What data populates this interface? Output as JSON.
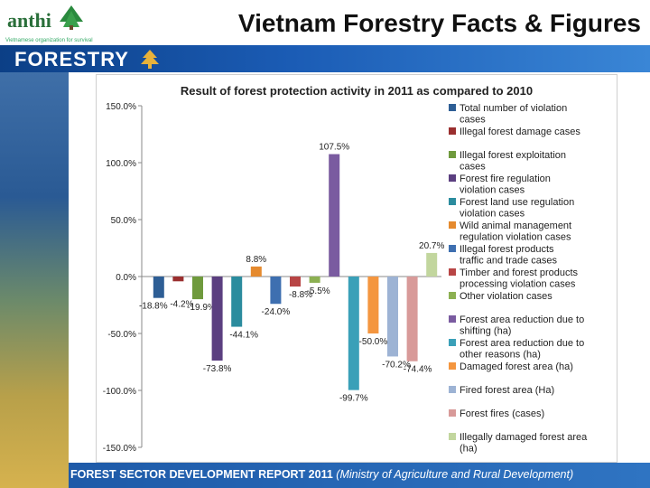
{
  "slide": {
    "title": "Vietnam Forestry Facts & Figures",
    "banner": "FORESTRY",
    "logo_text": "anthi",
    "logo_tagline": "Vietnamese organization for survival",
    "footer_bold": "FOREST SECTOR DEVELOPMENT REPORT 2011",
    "footer_italic": "(Ministry of Agriculture and Rural Development)"
  },
  "chart_data": {
    "type": "bar",
    "title": "Result of forest protection activity in 2011 as compared to 2010",
    "ylim": [
      -150,
      150
    ],
    "yticks": [
      "150.0%",
      "100.0%",
      "50.0%",
      "0.0%",
      "-50.0%",
      "-100.0%",
      "-150.0%"
    ],
    "legend_position": "right",
    "grid": false,
    "series": [
      {
        "name": "Total number of violation cases",
        "value": -18.8,
        "label": "-18.8%",
        "color": "#2e5e95"
      },
      {
        "name": "Illegal forest damage cases",
        "value": -4.2,
        "label": "-4.2%",
        "color": "#9a2f2f"
      },
      {
        "name": "Illegal forest exploitation cases",
        "value": -19.9,
        "label": "-19.9%",
        "color": "#6f9a3d"
      },
      {
        "name": "Forest fire regulation violation cases",
        "value": -73.8,
        "label": "-73.8%",
        "color": "#5b3f80"
      },
      {
        "name": "Forest land use regulation violation cases",
        "value": -44.1,
        "label": "-44.1%",
        "color": "#2b8c9e"
      },
      {
        "name": "Wild animal management regulation violation cases",
        "value": 8.8,
        "label": "8.8%",
        "color": "#e58a2e"
      },
      {
        "name": "Illegal forest products traffic and trade cases",
        "value": -24.0,
        "label": "-24.0%",
        "color": "#3e6fb0"
      },
      {
        "name": "Timber and forest products processing violation cases",
        "value": -8.8,
        "label": "-8.8%",
        "color": "#b84545"
      },
      {
        "name": "Other violation cases",
        "value": -5.5,
        "label": "-5.5%",
        "color": "#8cb052"
      },
      {
        "name": "Forest area reduction due to shifting (ha)",
        "value": 107.5,
        "label": "107.5%",
        "color": "#7a5ba0"
      },
      {
        "name": "Forest area reduction due to other reasons (ha)",
        "value": -99.7,
        "label": "-99.7%",
        "color": "#3aa0b8"
      },
      {
        "name": "Damaged forest area (ha)",
        "value": -50.0,
        "label": "-50.0%",
        "color": "#f4963f"
      },
      {
        "name": "Fired forest area (Ha)",
        "value": -70.2,
        "label": "-70.2%",
        "color": "#9db3d4"
      },
      {
        "name": "Forest fires (cases)",
        "value": -74.4,
        "label": "-74.4%",
        "color": "#d89a99"
      },
      {
        "name": "Illegally damaged forest area (ha)",
        "value": 20.7,
        "label": "20.7%",
        "color": "#c2d69e"
      }
    ]
  }
}
